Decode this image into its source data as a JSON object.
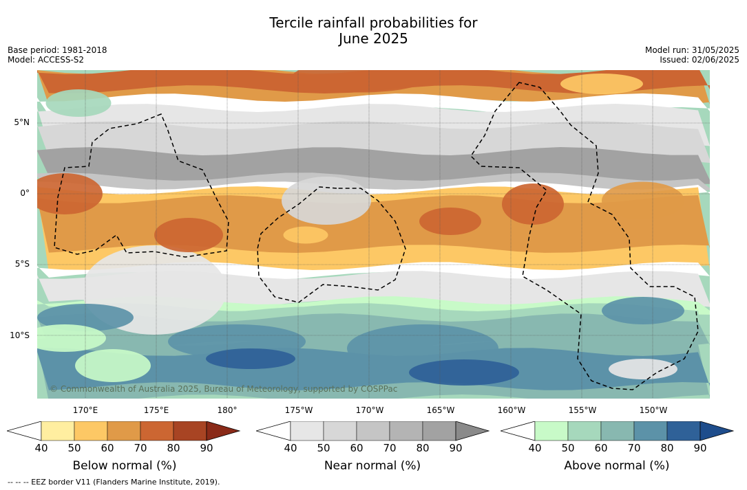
{
  "title_line1": "Tercile rainfall probabilities for",
  "title_line2": "June 2025",
  "base_period": "Base period: 1981-2018",
  "model": "Model: ACCESS-S2",
  "model_run": "Model run: 31/05/2025",
  "issued": "Issued: 02/06/2025",
  "lat_labels": [
    "5°N",
    "0°",
    "5°S",
    "10°S"
  ],
  "lon_labels": [
    "170°E",
    "175°E",
    "180°",
    "175°W",
    "170°W",
    "165°W",
    "160°W",
    "155°W",
    "150°W"
  ],
  "copyright": "© Commonwealth of Australia 2025, Bureau of Meteorology, supported by COSPPac",
  "footnote": "--  --  -- EEZ border V11 (Flanders Marine Institute, 2019).",
  "colorbars": [
    {
      "title": "Below normal (%)",
      "ticks": [
        "40",
        "50",
        "60",
        "70",
        "80",
        "90"
      ],
      "colors": [
        "#ffeea0",
        "#fdc865",
        "#e09a48",
        "#cc6632",
        "#a84423",
        "#8a2a18"
      ]
    },
    {
      "title": "Near normal (%)",
      "ticks": [
        "40",
        "50",
        "60",
        "70",
        "80",
        "90"
      ],
      "colors": [
        "#e6e6e6",
        "#d7d7d7",
        "#c5c5c5",
        "#b4b4b4",
        "#a2a2a2",
        "#8a8a8a"
      ]
    },
    {
      "title": "Above normal (%)",
      "ticks": [
        "40",
        "50",
        "60",
        "70",
        "80",
        "90"
      ],
      "colors": [
        "#c8fac8",
        "#a6d8bc",
        "#88b8b0",
        "#5c92a8",
        "#2f6198",
        "#1e4d8c"
      ]
    }
  ],
  "map_colors": {
    "white": "#ffffff",
    "gray1": "#e6e6e6",
    "gray2": "#d7d7d7",
    "gray3": "#c5c5c5",
    "gray5": "#a2a2a2",
    "bn1": "#ffeea0",
    "bn2": "#fdc865",
    "bn3": "#e09a48",
    "bn4": "#cc6632",
    "bn5": "#a84423",
    "an1": "#c8fac8",
    "an2": "#a6d8bc",
    "an3": "#88b8b0",
    "an4": "#5c92a8",
    "an5": "#2f6198"
  }
}
